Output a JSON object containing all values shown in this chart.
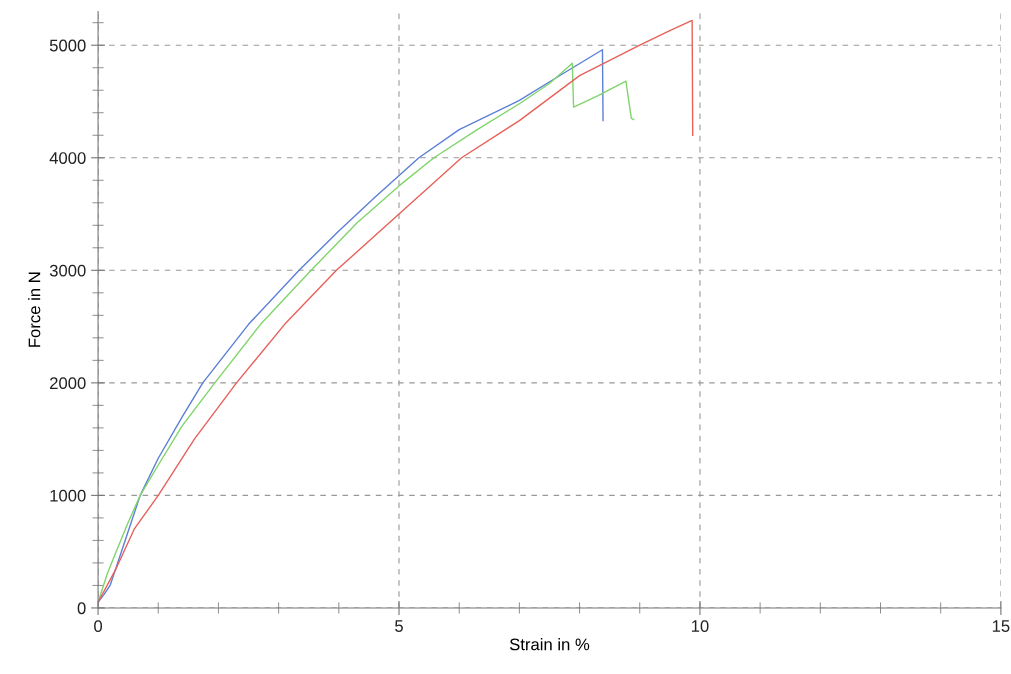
{
  "chart_data": {
    "type": "line",
    "xlabel": "Strain in %",
    "ylabel": "Force in N",
    "xlim": [
      0,
      15
    ],
    "xticks": [
      0,
      5,
      10,
      15
    ],
    "ylim": [
      0,
      5300
    ],
    "yticks": [
      0,
      1000,
      2000,
      3000,
      4000,
      5000
    ],
    "grid": true,
    "marker": "none",
    "line_style": "solid",
    "series": [
      {
        "color": "#5b7fd6",
        "x": [
          0,
          0.1,
          0.2,
          0.4,
          0.7,
          1.0,
          1.4,
          1.74,
          2.5,
          3.34,
          4.0,
          4.6,
          5.33,
          6.0,
          7.0,
          7.7,
          8.38,
          8.39
        ],
        "values": [
          50,
          120,
          200,
          520,
          1000,
          1330,
          1700,
          2000,
          2520,
          3000,
          3350,
          3650,
          4000,
          4250,
          4510,
          4740,
          4960,
          4330
        ]
      },
      {
        "color": "#7fd46a",
        "x": [
          0,
          0.15,
          0.3,
          0.5,
          0.7,
          1.0,
          1.4,
          1.94,
          2.7,
          3.54,
          4.3,
          5.0,
          5.58,
          6.3,
          7.0,
          7.5,
          7.88,
          7.9,
          8.3,
          8.77,
          8.86,
          8.9
        ],
        "values": [
          50,
          300,
          500,
          760,
          1000,
          1270,
          1620,
          2000,
          2520,
          3000,
          3420,
          3750,
          4000,
          4250,
          4480,
          4660,
          4840,
          4450,
          4550,
          4680,
          4350,
          4340
        ]
      },
      {
        "color": "#e8605a",
        "x": [
          0,
          0.3,
          0.6,
          1.0,
          1.6,
          2.3,
          3.1,
          3.96,
          5.0,
          6.04,
          7.0,
          8.0,
          9.0,
          9.5,
          9.87,
          9.88
        ],
        "values": [
          50,
          350,
          700,
          1000,
          1500,
          2000,
          2520,
          3000,
          3500,
          4000,
          4330,
          4730,
          5000,
          5130,
          5220,
          4200
        ]
      }
    ]
  }
}
